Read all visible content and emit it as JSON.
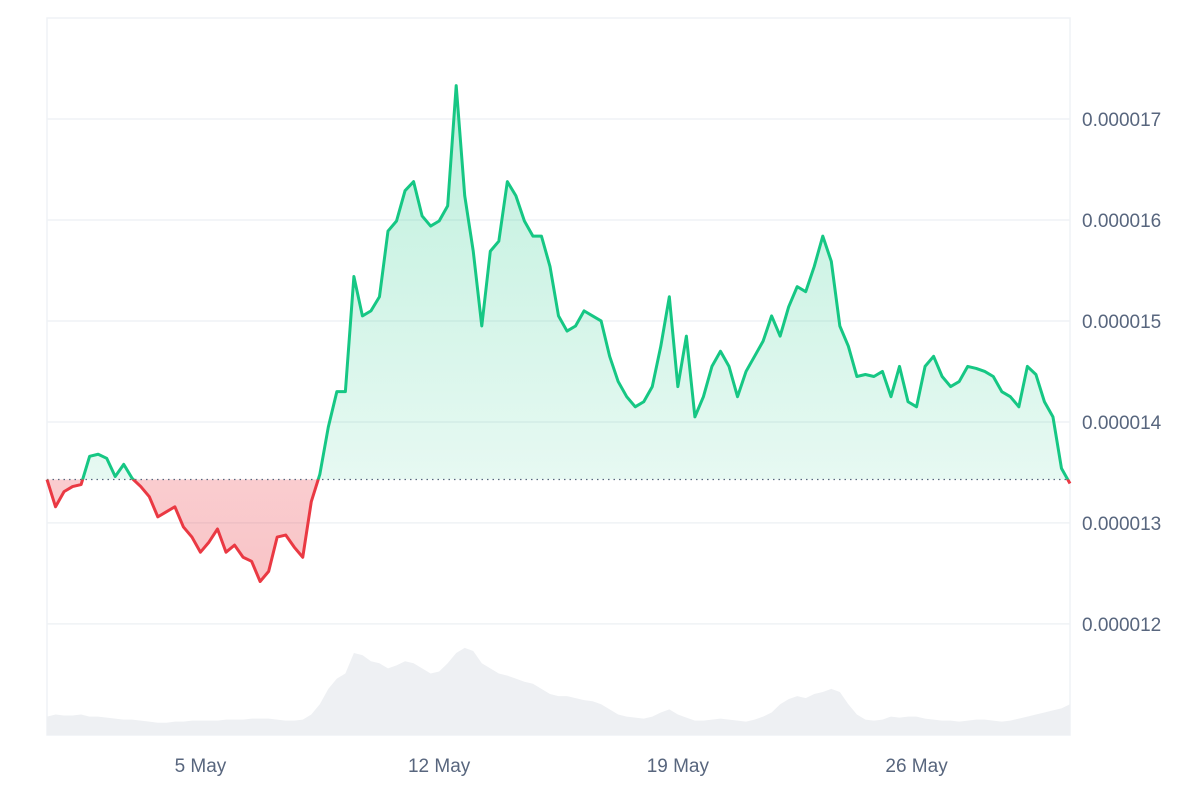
{
  "chart_data": {
    "type": "area",
    "categories": [
      null,
      null,
      null,
      null,
      null,
      null,
      null,
      null,
      null,
      null,
      null,
      null,
      null,
      null,
      null,
      null,
      null,
      null,
      "5 May",
      null,
      null,
      null,
      null,
      null,
      null,
      null,
      null,
      null,
      null,
      null,
      null,
      null,
      null,
      null,
      null,
      null,
      null,
      null,
      null,
      null,
      null,
      null,
      null,
      null,
      null,
      null,
      "12 May",
      null,
      null,
      null,
      null,
      null,
      null,
      null,
      null,
      null,
      null,
      null,
      null,
      null,
      null,
      null,
      null,
      null,
      null,
      null,
      null,
      null,
      null,
      null,
      null,
      null,
      null,
      null,
      "19 May",
      null,
      null,
      null,
      null,
      null,
      null,
      null,
      null,
      null,
      null,
      null,
      null,
      null,
      null,
      null,
      null,
      null,
      null,
      null,
      null,
      null,
      null,
      null,
      null,
      null,
      null,
      null,
      "26 May",
      null,
      null,
      null,
      null,
      null,
      null,
      null,
      null,
      null,
      null,
      null,
      null,
      null,
      null,
      null,
      null,
      null,
      null
    ],
    "series": [
      {
        "color": "#16c784",
        "negative_color": "#ea3943",
        "values": [
          1.343e-05,
          1.316e-05,
          1.331e-05,
          1.336e-05,
          1.338e-05,
          1.366e-05,
          1.368e-05,
          1.364e-05,
          1.346e-05,
          1.358e-05,
          1.344e-05,
          1.336e-05,
          1.326e-05,
          1.306e-05,
          1.311e-05,
          1.316e-05,
          1.296e-05,
          1.286e-05,
          1.271e-05,
          1.281e-05,
          1.294e-05,
          1.271e-05,
          1.278e-05,
          1.266e-05,
          1.262e-05,
          1.242e-05,
          1.252e-05,
          1.286e-05,
          1.288e-05,
          1.276e-05,
          1.266e-05,
          1.321e-05,
          1.348e-05,
          1.395e-05,
          1.43e-05,
          1.43e-05,
          1.544e-05,
          1.505e-05,
          1.51e-05,
          1.524e-05,
          1.589e-05,
          1.599e-05,
          1.629e-05,
          1.638e-05,
          1.604e-05,
          1.594e-05,
          1.599e-05,
          1.614e-05,
          1.733e-05,
          1.624e-05,
          1.569e-05,
          1.495e-05,
          1.569e-05,
          1.579e-05,
          1.638e-05,
          1.624e-05,
          1.599e-05,
          1.584e-05,
          1.584e-05,
          1.554e-05,
          1.505e-05,
          1.49e-05,
          1.495e-05,
          1.51e-05,
          1.505e-05,
          1.5e-05,
          1.465e-05,
          1.44e-05,
          1.425e-05,
          1.415e-05,
          1.42e-05,
          1.435e-05,
          1.475e-05,
          1.524e-05,
          1.435e-05,
          1.485e-05,
          1.405e-05,
          1.425e-05,
          1.455e-05,
          1.47e-05,
          1.455e-05,
          1.425e-05,
          1.45e-05,
          1.465e-05,
          1.48e-05,
          1.505e-05,
          1.485e-05,
          1.514e-05,
          1.534e-05,
          1.529e-05,
          1.554e-05,
          1.584e-05,
          1.559e-05,
          1.495e-05,
          1.475e-05,
          1.445e-05,
          1.447e-05,
          1.445e-05,
          1.45e-05,
          1.425e-05,
          1.455e-05,
          1.42e-05,
          1.415e-05,
          1.455e-05,
          1.465e-05,
          1.445e-05,
          1.435e-05,
          1.44e-05,
          1.455e-05,
          1.453e-05,
          1.45e-05,
          1.445e-05,
          1.43e-05,
          1.425e-05,
          1.415e-05,
          1.455e-05,
          1.447e-05,
          1.42e-05,
          1.405e-05,
          1.354e-05,
          1.339e-05
        ]
      },
      {
        "color": "#eef0f3",
        "axis": "y2",
        "values": [
          18,
          20,
          19,
          19,
          20,
          18,
          18,
          17,
          16,
          15,
          15,
          14,
          13,
          12,
          12,
          13,
          13,
          14,
          14,
          14,
          14,
          15,
          15,
          15,
          16,
          16,
          16,
          15,
          14,
          14,
          15,
          20,
          30,
          45,
          55,
          60,
          80,
          78,
          72,
          70,
          65,
          68,
          72,
          70,
          65,
          60,
          62,
          70,
          80,
          85,
          82,
          70,
          65,
          60,
          58,
          55,
          52,
          50,
          45,
          40,
          38,
          38,
          36,
          34,
          33,
          30,
          25,
          20,
          18,
          17,
          16,
          18,
          22,
          25,
          20,
          17,
          14,
          14,
          15,
          16,
          15,
          14,
          13,
          15,
          18,
          22,
          30,
          35,
          38,
          36,
          40,
          42,
          45,
          42,
          30,
          20,
          15,
          14,
          15,
          18,
          17,
          18,
          18,
          16,
          15,
          14,
          14,
          13,
          14,
          15,
          15,
          14,
          13,
          14,
          16,
          18,
          20,
          22,
          24,
          26,
          30
        ]
      }
    ],
    "ylim": [
      1.09e-05,
      1.8e-05
    ],
    "yticks": [
      1.2e-05,
      1.3e-05,
      1.4e-05,
      1.5e-05,
      1.6e-05,
      1.7e-05
    ],
    "y2lim": [
      0,
      700
    ],
    "grid": true
  }
}
